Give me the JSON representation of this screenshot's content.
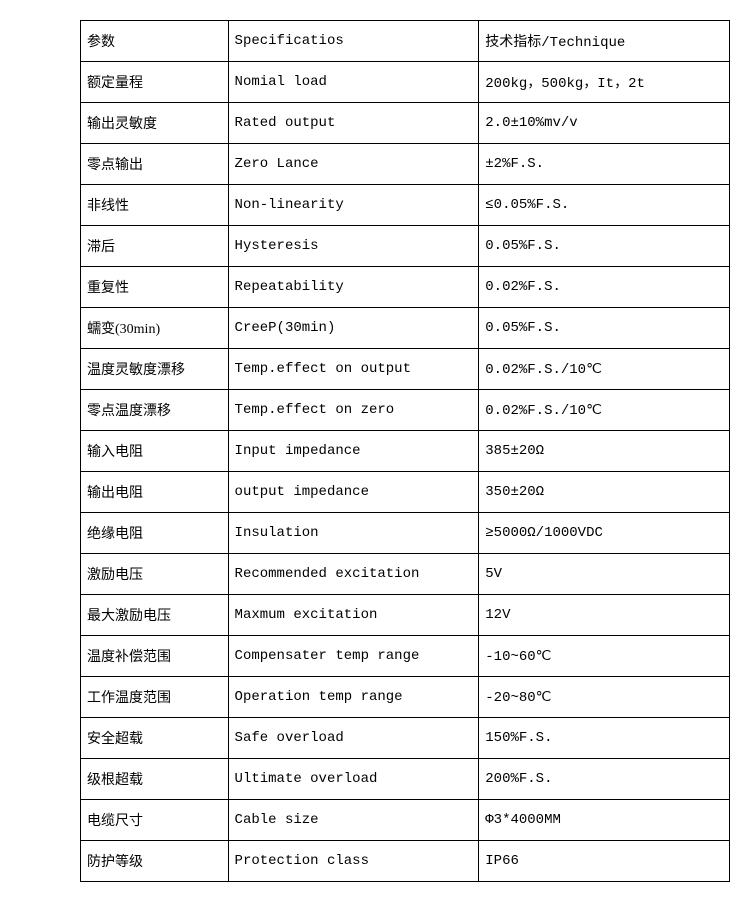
{
  "table": {
    "header": {
      "col1": "参数",
      "col2": "Specificatios",
      "col3": "技术指标/Technique"
    },
    "rows": [
      {
        "cn": "额定量程",
        "en": "Nomial load",
        "val": "200kg，500kg，It，2t"
      },
      {
        "cn": "输出灵敏度",
        "en": "Rated output",
        "val": "2.0±10%mv/v"
      },
      {
        "cn": "零点输出",
        "en": "Zero Lance",
        "val": "±2%F.S."
      },
      {
        "cn": "非线性",
        "en": "Non-linearity",
        "val": "≤0.05%F.S."
      },
      {
        "cn": "滞后",
        "en": "Hysteresis",
        "val": "0.05%F.S."
      },
      {
        "cn": "重复性",
        "en": "Repeatability",
        "val": "0.02%F.S."
      },
      {
        "cn": "蠕变(30min)",
        "en": "CreeP(30min)",
        "val": "0.05%F.S."
      },
      {
        "cn": "温度灵敏度漂移",
        "en": "Temp.effect on output",
        "val": "0.02%F.S./10℃"
      },
      {
        "cn": "零点温度漂移",
        "en": "Temp.effect on zero",
        "val": "0.02%F.S./10℃"
      },
      {
        "cn": "输入电阻",
        "en": "Input impedance",
        "val": "385±20Ω"
      },
      {
        "cn": "输出电阻",
        "en": "output impedance",
        "val": "350±20Ω"
      },
      {
        "cn": "绝缘电阻",
        "en": "Insulation",
        "val": "≥5000Ω/1000VDC"
      },
      {
        "cn": "激励电压",
        "en": "Recommended excitation",
        "val": "5V"
      },
      {
        "cn": "最大激励电压",
        "en": "Maxmum excitation",
        "val": "12V"
      },
      {
        "cn": "温度补偿范围",
        "en": "Compensater temp range",
        "val": "-10~60℃"
      },
      {
        "cn": "工作温度范围",
        "en": "Operation temp range",
        "val": "-20~80℃"
      },
      {
        "cn": "安全超载",
        "en": "Safe overload",
        "val": "150%F.S."
      },
      {
        "cn": "级根超载",
        "en": "Ultimate overload",
        "val": "200%F.S."
      },
      {
        "cn": "电缆尺寸",
        "en": "Cable size",
        "val": "Φ3*4000MM"
      },
      {
        "cn": "防护等级",
        "en": "Protection class",
        "val": "IP66"
      }
    ]
  }
}
